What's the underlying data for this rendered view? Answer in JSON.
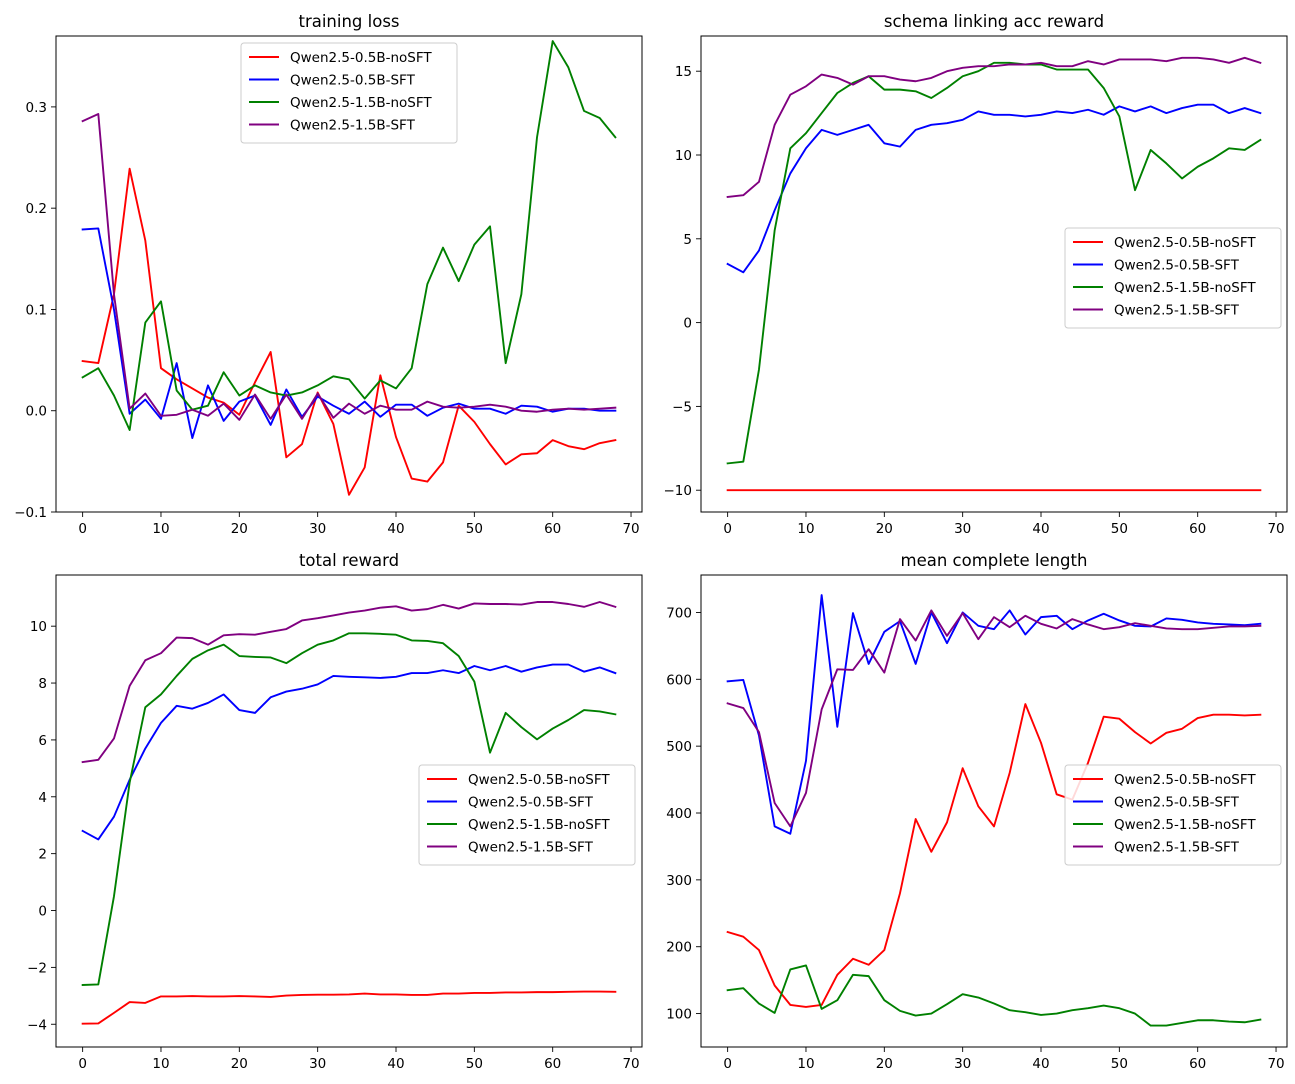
{
  "figure": {
    "colors": {
      "Qwen2.5-0.5B-noSFT": "#ff0000",
      "Qwen2.5-0.5B-SFT": "#0000ff",
      "Qwen2.5-1.5B-noSFT": "#008000",
      "Qwen2.5-1.5B-SFT": "#800080"
    }
  },
  "chart_data": [
    {
      "type": "line",
      "title": "training loss",
      "xlabel": "",
      "ylabel": "",
      "xlim": [
        -3.4,
        71.4
      ],
      "ylim": [
        -0.1,
        0.37
      ],
      "xticks": [
        0,
        10,
        20,
        30,
        40,
        50,
        60,
        70
      ],
      "yticks": [
        -0.1,
        0.0,
        0.1,
        0.2,
        0.3
      ],
      "ytick_labels": [
        "−0.1",
        "0.0",
        "0.1",
        "0.2",
        "0.3"
      ],
      "legend": "upper-center",
      "x": [
        0,
        2,
        4,
        6,
        8,
        10,
        12,
        14,
        16,
        18,
        20,
        22,
        24,
        26,
        28,
        30,
        32,
        34,
        36,
        38,
        40,
        42,
        44,
        46,
        48,
        50,
        52,
        54,
        56,
        58,
        60,
        62,
        64,
        66,
        68
      ],
      "series": [
        {
          "name": "Qwen2.5-0.5B-noSFT",
          "values": [
            0.049,
            0.047,
            0.115,
            0.239,
            0.168,
            0.042,
            0.031,
            0.022,
            0.013,
            0.008,
            -0.004,
            0.028,
            0.058,
            -0.046,
            -0.033,
            0.018,
            -0.013,
            -0.083,
            -0.056,
            0.035,
            -0.026,
            -0.067,
            -0.07,
            -0.051,
            0.005,
            -0.011,
            -0.033,
            -0.053,
            -0.043,
            -0.042,
            -0.029,
            -0.035,
            -0.038,
            -0.032,
            -0.029
          ]
        },
        {
          "name": "Qwen2.5-0.5B-SFT",
          "values": [
            0.179,
            0.18,
            0.1,
            -0.003,
            0.011,
            -0.008,
            0.047,
            -0.027,
            0.025,
            -0.01,
            0.009,
            0.015,
            -0.014,
            0.021,
            -0.006,
            0.014,
            0.005,
            -0.003,
            0.009,
            -0.006,
            0.006,
            0.006,
            -0.005,
            0.003,
            0.007,
            0.002,
            0.002,
            -0.003,
            0.005,
            0.004,
            -0.001,
            0.002,
            0.002,
            0,
            0
          ]
        },
        {
          "name": "Qwen2.5-1.5B-noSFT",
          "values": [
            0.033,
            0.042,
            0.015,
            -0.019,
            0.087,
            0.108,
            0.02,
            0.001,
            0.005,
            0.038,
            0.015,
            0.025,
            0.018,
            0.015,
            0.018,
            0.025,
            0.034,
            0.031,
            0.012,
            0.03,
            0.022,
            0.042,
            0.125,
            0.161,
            0.128,
            0.164,
            0.182,
            0.047,
            0.115,
            0.27,
            0.365,
            0.339,
            0.296,
            0.289,
            0.27
          ]
        },
        {
          "name": "Qwen2.5-1.5B-SFT",
          "values": [
            0.286,
            0.293,
            0.115,
            0.002,
            0.017,
            -0.005,
            -0.004,
            0.001,
            -0.005,
            0.007,
            -0.009,
            0.016,
            -0.008,
            0.016,
            -0.008,
            0.017,
            -0.007,
            0.007,
            -0.003,
            0.005,
            0.001,
            0.001,
            0.009,
            0.004,
            0.003,
            0.004,
            0.006,
            0.004,
            0,
            -0.001,
            0.001,
            0.002,
            0.001,
            0.002,
            0.003
          ]
        }
      ]
    },
    {
      "type": "line",
      "title": "schema linking acc reward",
      "xlabel": "",
      "ylabel": "",
      "xlim": [
        -3.4,
        71.4
      ],
      "ylim": [
        -11.3,
        17.1
      ],
      "xticks": [
        0,
        10,
        20,
        30,
        40,
        50,
        60,
        70
      ],
      "yticks": [
        -10,
        -5,
        0,
        5,
        10,
        15
      ],
      "ytick_labels": [
        "−10",
        "−5",
        "0",
        "5",
        "10",
        "15"
      ],
      "legend": "center-right",
      "x": [
        0,
        2,
        4,
        6,
        8,
        10,
        12,
        14,
        16,
        18,
        20,
        22,
        24,
        26,
        28,
        30,
        32,
        34,
        36,
        38,
        40,
        42,
        44,
        46,
        48,
        50,
        52,
        54,
        56,
        58,
        60,
        62,
        64,
        66,
        68
      ],
      "series": [
        {
          "name": "Qwen2.5-0.5B-noSFT",
          "values": [
            -10,
            -10,
            -10,
            -10,
            -10,
            -10,
            -10,
            -10,
            -10,
            -10,
            -10,
            -10,
            -10,
            -10,
            -10,
            -10,
            -10,
            -10,
            -10,
            -10,
            -10,
            -10,
            -10,
            -10,
            -10,
            -10,
            -10,
            -10,
            -10,
            -10,
            -10,
            -10,
            -10,
            -10,
            -10
          ]
        },
        {
          "name": "Qwen2.5-0.5B-SFT",
          "values": [
            3.5,
            3,
            4.3,
            6.7,
            8.9,
            10.4,
            11.5,
            11.2,
            11.5,
            11.8,
            10.7,
            10.5,
            11.5,
            11.8,
            11.9,
            12.1,
            12.6,
            12.4,
            12.4,
            12.3,
            12.4,
            12.6,
            12.5,
            12.7,
            12.4,
            12.9,
            12.6,
            12.9,
            12.5,
            12.8,
            13,
            13,
            12.5,
            12.8,
            12.5
          ]
        },
        {
          "name": "Qwen2.5-1.5B-noSFT",
          "values": [
            -8.4,
            -8.3,
            -2.8,
            5.5,
            10.4,
            11.3,
            12.5,
            13.7,
            14.3,
            14.7,
            13.9,
            13.9,
            13.8,
            13.4,
            14,
            14.7,
            15,
            15.5,
            15.5,
            15.4,
            15.4,
            15.1,
            15.1,
            15.1,
            14,
            12.3,
            7.9,
            10.3,
            9.5,
            8.6,
            9.3,
            9.8,
            10.4,
            10.3,
            10.9
          ]
        },
        {
          "name": "Qwen2.5-1.5B-SFT",
          "values": [
            7.5,
            7.6,
            8.4,
            11.8,
            13.6,
            14.1,
            14.8,
            14.6,
            14.2,
            14.7,
            14.7,
            14.5,
            14.4,
            14.6,
            15,
            15.2,
            15.3,
            15.3,
            15.4,
            15.4,
            15.5,
            15.3,
            15.3,
            15.6,
            15.4,
            15.7,
            15.7,
            15.7,
            15.6,
            15.8,
            15.8,
            15.7,
            15.5,
            15.8,
            15.5
          ]
        }
      ]
    },
    {
      "type": "line",
      "title": "total reward",
      "xlabel": "",
      "ylabel": "",
      "xlim": [
        -3.4,
        71.4
      ],
      "ylim": [
        -4.8,
        11.8
      ],
      "xticks": [
        0,
        10,
        20,
        30,
        40,
        50,
        60,
        70
      ],
      "yticks": [
        -4,
        -2,
        0,
        2,
        4,
        6,
        8,
        10
      ],
      "ytick_labels": [
        "−4",
        "−2",
        "0",
        "2",
        "4",
        "6",
        "8",
        "10"
      ],
      "legend": "center-right",
      "x": [
        0,
        2,
        4,
        6,
        8,
        10,
        12,
        14,
        16,
        18,
        20,
        22,
        24,
        26,
        28,
        30,
        32,
        34,
        36,
        38,
        40,
        42,
        44,
        46,
        48,
        50,
        52,
        54,
        56,
        58,
        60,
        62,
        64,
        66,
        68
      ],
      "series": [
        {
          "name": "Qwen2.5-0.5B-noSFT",
          "values": [
            -3.98,
            -3.97,
            -3.6,
            -3.22,
            -3.25,
            -3.02,
            -3.02,
            -3.01,
            -3.02,
            -3.02,
            -3.01,
            -3.02,
            -3.04,
            -2.99,
            -2.97,
            -2.96,
            -2.96,
            -2.95,
            -2.92,
            -2.95,
            -2.95,
            -2.97,
            -2.97,
            -2.92,
            -2.92,
            -2.9,
            -2.9,
            -2.88,
            -2.88,
            -2.87,
            -2.87,
            -2.86,
            -2.85,
            -2.85,
            -2.86
          ]
        },
        {
          "name": "Qwen2.5-0.5B-SFT",
          "values": [
            2.8,
            2.5,
            3.3,
            4.6,
            5.7,
            6.6,
            7.2,
            7.1,
            7.3,
            7.6,
            7.05,
            6.95,
            7.5,
            7.7,
            7.8,
            7.95,
            8.25,
            8.22,
            8.2,
            8.18,
            8.22,
            8.35,
            8.35,
            8.45,
            8.35,
            8.6,
            8.45,
            8.6,
            8.4,
            8.55,
            8.65,
            8.65,
            8.4,
            8.55,
            8.35
          ]
        },
        {
          "name": "Qwen2.5-1.5B-noSFT",
          "values": [
            -2.62,
            -2.6,
            0.5,
            4.5,
            7.15,
            7.6,
            8.25,
            8.85,
            9.15,
            9.35,
            8.95,
            8.92,
            8.9,
            8.7,
            9.05,
            9.35,
            9.5,
            9.75,
            9.75,
            9.73,
            9.7,
            9.5,
            9.48,
            9.4,
            8.95,
            8.05,
            5.55,
            6.95,
            6.45,
            6.02,
            6.4,
            6.7,
            7.05,
            7,
            6.9
          ]
        },
        {
          "name": "Qwen2.5-1.5B-SFT",
          "values": [
            5.22,
            5.3,
            6.05,
            7.9,
            8.8,
            9.05,
            9.6,
            9.58,
            9.35,
            9.68,
            9.72,
            9.7,
            9.8,
            9.9,
            10.2,
            10.28,
            10.38,
            10.48,
            10.55,
            10.65,
            10.7,
            10.55,
            10.6,
            10.75,
            10.62,
            10.8,
            10.78,
            10.78,
            10.76,
            10.85,
            10.85,
            10.78,
            10.68,
            10.85,
            10.68
          ]
        }
      ]
    },
    {
      "type": "line",
      "title": "mean complete length",
      "xlabel": "",
      "ylabel": "",
      "xlim": [
        -3.4,
        71.4
      ],
      "ylim": [
        50,
        756
      ],
      "xticks": [
        0,
        10,
        20,
        30,
        40,
        50,
        60,
        70
      ],
      "yticks": [
        100,
        200,
        300,
        400,
        500,
        600,
        700
      ],
      "ytick_labels": [
        "100",
        "200",
        "300",
        "400",
        "500",
        "600",
        "700"
      ],
      "legend": "center-right",
      "x": [
        0,
        2,
        4,
        6,
        8,
        10,
        12,
        14,
        16,
        18,
        20,
        22,
        24,
        26,
        28,
        30,
        32,
        34,
        36,
        38,
        40,
        42,
        44,
        46,
        48,
        50,
        52,
        54,
        56,
        58,
        60,
        62,
        64,
        66,
        68
      ],
      "series": [
        {
          "name": "Qwen2.5-0.5B-noSFT",
          "values": [
            222,
            215,
            195,
            142,
            113,
            110,
            113,
            158,
            182,
            173,
            195,
            280,
            391,
            342,
            386,
            467,
            410,
            380,
            460,
            563,
            505,
            428,
            420,
            475,
            544,
            541,
            521,
            504,
            520,
            526,
            542,
            547,
            547,
            546,
            547
          ]
        },
        {
          "name": "Qwen2.5-0.5B-SFT",
          "values": [
            597,
            599,
            516,
            380,
            369,
            478,
            726,
            529,
            699,
            623,
            671,
            687,
            623,
            700,
            654,
            700,
            680,
            675,
            703,
            667,
            693,
            695,
            675,
            688,
            698,
            688,
            680,
            679,
            691,
            689,
            685,
            683,
            682,
            681,
            683
          ]
        },
        {
          "name": "Qwen2.5-1.5B-noSFT",
          "values": [
            135,
            138,
            115,
            101,
            166,
            172,
            107,
            120,
            158,
            156,
            120,
            104,
            97,
            100,
            114,
            129,
            124,
            115,
            105,
            102,
            98,
            100,
            105,
            108,
            112,
            108,
            100,
            82,
            82,
            86,
            90,
            90,
            88,
            87,
            91
          ]
        },
        {
          "name": "Qwen2.5-1.5B-SFT",
          "values": [
            564,
            557,
            521,
            415,
            380,
            430,
            555,
            615,
            614,
            645,
            610,
            690,
            658,
            703,
            665,
            699,
            660,
            693,
            678,
            695,
            683,
            676,
            690,
            682,
            675,
            678,
            684,
            680,
            676,
            675,
            675,
            677,
            679,
            679,
            680
          ]
        }
      ]
    }
  ]
}
